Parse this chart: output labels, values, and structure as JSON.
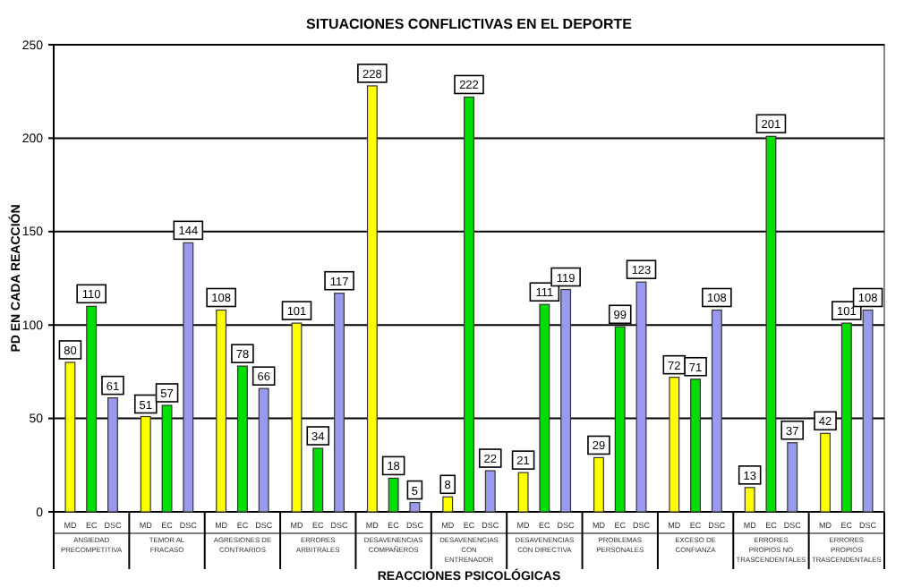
{
  "chart_data": {
    "type": "bar",
    "title": "SITUACIONES CONFLICTIVAS EN EL DEPORTE",
    "xlabel": "REACCIONES PSICOLÓGICAS",
    "ylabel": "PD EN CADA REACCIÓN",
    "categories": [
      "ANSIEDAD PRECOMPETITIVA",
      "TEMOR AL FRACASO",
      "AGRESIONES DE CONTRARIOS",
      "ERRORES ARBITRALES",
      "DESAVENENCIAS COMPAÑEROS",
      "DESAVENENCIAS CON ENTRENADOR",
      "DESAVENENCIAS CON DIRECTIVA",
      "PROBLEMAS PERSONALES",
      "EXCESO DE CONFIANZA",
      "ERRORES PROPIOS NO TRASCENDENTALES",
      "ERRORES PROPIOS TRASCENDENTALES"
    ],
    "series": [
      {
        "name": "MD",
        "color": "#ffff00",
        "values": [
          80,
          51,
          108,
          101,
          228,
          8,
          21,
          29,
          72,
          13,
          42
        ]
      },
      {
        "name": "EC",
        "color": "#00dd00",
        "values": [
          110,
          57,
          78,
          34,
          18,
          222,
          111,
          99,
          71,
          201,
          101
        ]
      },
      {
        "name": "DSC",
        "color": "#9999ee",
        "values": [
          61,
          144,
          66,
          117,
          5,
          22,
          119,
          123,
          108,
          37,
          108
        ]
      }
    ],
    "ylim": [
      0,
      250
    ],
    "yticks": [
      0,
      50,
      100,
      150,
      200,
      250
    ],
    "grid": "y",
    "data_labels": true
  }
}
